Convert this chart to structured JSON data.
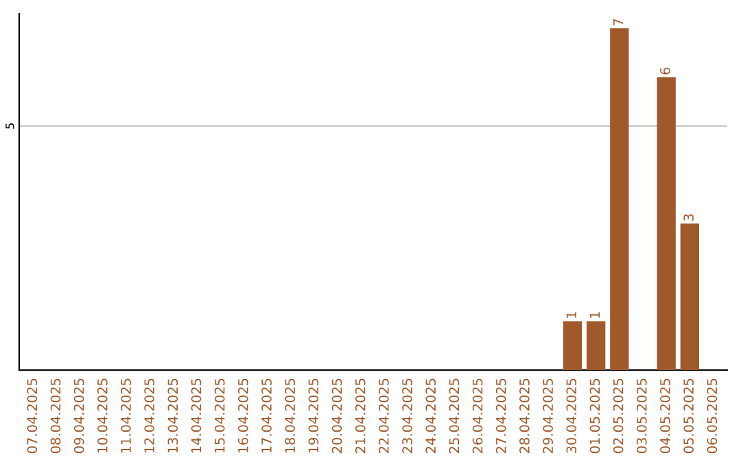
{
  "chart_data": {
    "type": "bar",
    "categories": [
      "07.04.2025",
      "08.04.2025",
      "09.04.2025",
      "10.04.2025",
      "11.04.2025",
      "12.04.2025",
      "13.04.2025",
      "14.04.2025",
      "15.04.2025",
      "16.04.2025",
      "17.04.2025",
      "18.04.2025",
      "19.04.2025",
      "20.04.2025",
      "21.04.2025",
      "22.04.2025",
      "23.04.2025",
      "24.04.2025",
      "25.04.2025",
      "26.04.2025",
      "27.04.2025",
      "28.04.2025",
      "29.04.2025",
      "30.04.2025",
      "01.05.2025",
      "02.05.2025",
      "03.05.2025",
      "04.05.2025",
      "05.05.2025",
      "06.05.2025"
    ],
    "values": [
      null,
      null,
      null,
      null,
      null,
      null,
      null,
      null,
      null,
      null,
      null,
      null,
      null,
      null,
      null,
      null,
      null,
      null,
      null,
      null,
      null,
      null,
      null,
      1,
      1,
      7,
      null,
      6,
      3,
      null
    ],
    "data_labels": true,
    "color": "#a0592a",
    "ylim": [
      0,
      7.3
    ],
    "ref_lines": [
      {
        "axis": "y",
        "value": 5,
        "label": "5",
        "color": "#c8c8c8"
      }
    ]
  }
}
